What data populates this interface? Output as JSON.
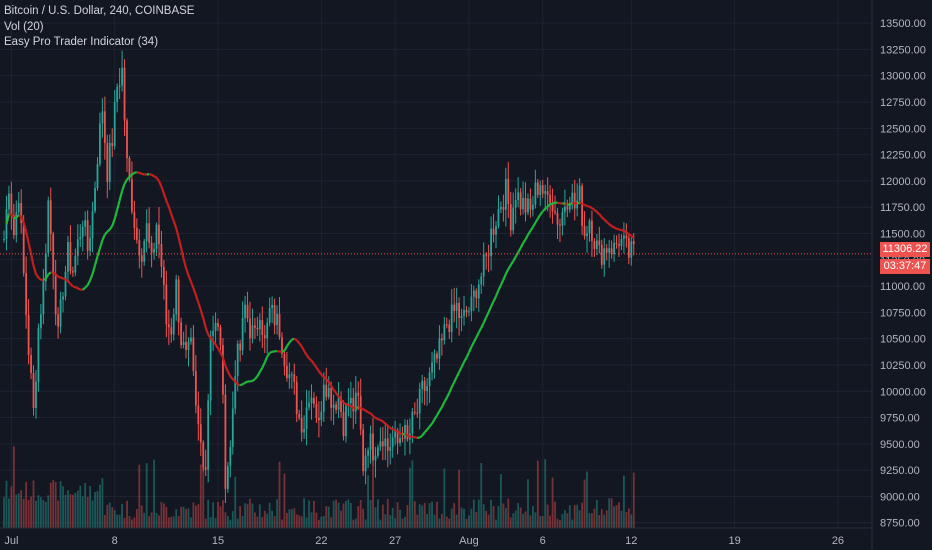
{
  "legend": {
    "symbol": "Bitcoin / U.S. Dollar, 240, COINBASE",
    "volume": "Vol (20)",
    "indicator": "Easy Pro Trader Indicator (34)"
  },
  "price_tag": {
    "value": "11306.22",
    "countdown": "03:37:47"
  },
  "colors": {
    "up": "#26a69a",
    "down": "#ef5350",
    "ma_up": "#1fb83a",
    "ma_down": "#c41f1f"
  },
  "chart_data": {
    "type": "candlestick",
    "x_axis_labels": [
      {
        "label": "Jul",
        "t": 3
      },
      {
        "label": "8",
        "t": 45
      },
      {
        "label": "15",
        "t": 87
      },
      {
        "label": "22",
        "t": 129
      },
      {
        "label": "27",
        "t": 159
      },
      {
        "label": "Aug",
        "t": 189
      },
      {
        "label": "6",
        "t": 219
      },
      {
        "label": "12",
        "t": 255
      },
      {
        "label": "19",
        "t": 297
      },
      {
        "label": "26",
        "t": 339
      }
    ],
    "y_ticks": [
      13500,
      13250,
      13000,
      12750,
      12500,
      12250,
      12000,
      11750,
      11500,
      11250,
      11000,
      10750,
      10500,
      10250,
      10000,
      9750,
      9500,
      9250,
      9000,
      8750
    ],
    "y_range": [
      8700,
      13720
    ],
    "last_price": 11306.22,
    "anchors": [
      [
        0,
        11450
      ],
      [
        2,
        11980
      ],
      [
        4,
        11500
      ],
      [
        6,
        11900
      ],
      [
        8,
        11100
      ],
      [
        10,
        10400
      ],
      [
        12,
        9800
      ],
      [
        14,
        10600
      ],
      [
        16,
        11000
      ],
      [
        18,
        11800
      ],
      [
        20,
        11200
      ],
      [
        22,
        10500
      ],
      [
        24,
        11000
      ],
      [
        26,
        11300
      ],
      [
        28,
        11150
      ],
      [
        30,
        11400
      ],
      [
        32,
        11650
      ],
      [
        34,
        11350
      ],
      [
        36,
        11700
      ],
      [
        38,
        12250
      ],
      [
        40,
        12700
      ],
      [
        42,
        12100
      ],
      [
        44,
        12400
      ],
      [
        46,
        12900
      ],
      [
        48,
        13050
      ],
      [
        50,
        12150
      ],
      [
        52,
        11800
      ],
      [
        54,
        11450
      ],
      [
        56,
        11350
      ],
      [
        58,
        11550
      ],
      [
        60,
        11200
      ],
      [
        62,
        11600
      ],
      [
        64,
        11200
      ],
      [
        66,
        10650
      ],
      [
        68,
        10600
      ],
      [
        70,
        11000
      ],
      [
        72,
        10500
      ],
      [
        74,
        10300
      ],
      [
        76,
        10400
      ],
      [
        78,
        9800
      ],
      [
        80,
        9500
      ],
      [
        82,
        9300
      ],
      [
        84,
        10600
      ],
      [
        86,
        10600
      ],
      [
        88,
        10500
      ],
      [
        90,
        9200
      ],
      [
        92,
        9450
      ],
      [
        94,
        10250
      ],
      [
        96,
        10400
      ],
      [
        98,
        10800
      ],
      [
        100,
        10600
      ],
      [
        102,
        10500
      ],
      [
        104,
        10800
      ],
      [
        106,
        10450
      ],
      [
        108,
        10750
      ],
      [
        110,
        10700
      ],
      [
        112,
        10600
      ],
      [
        114,
        10350
      ],
      [
        116,
        10150
      ],
      [
        118,
        10000
      ],
      [
        120,
        9750
      ],
      [
        122,
        9700
      ],
      [
        124,
        10000
      ],
      [
        126,
        9950
      ],
      [
        128,
        9650
      ],
      [
        130,
        10150
      ],
      [
        132,
        10000
      ],
      [
        134,
        9900
      ],
      [
        136,
        9950
      ],
      [
        138,
        9700
      ],
      [
        140,
        9900
      ],
      [
        142,
        9850
      ],
      [
        144,
        9900
      ],
      [
        146,
        9300
      ],
      [
        148,
        9550
      ],
      [
        150,
        9450
      ],
      [
        152,
        9550
      ],
      [
        154,
        9600
      ],
      [
        156,
        9450
      ],
      [
        158,
        9550
      ],
      [
        160,
        9500
      ],
      [
        162,
        9650
      ],
      [
        164,
        9500
      ],
      [
        166,
        9700
      ],
      [
        168,
        9800
      ],
      [
        170,
        10000
      ],
      [
        172,
        10050
      ],
      [
        174,
        10200
      ],
      [
        176,
        10300
      ],
      [
        178,
        10450
      ],
      [
        180,
        10650
      ],
      [
        182,
        10700
      ],
      [
        184,
        10800
      ],
      [
        186,
        10650
      ],
      [
        188,
        10750
      ],
      [
        190,
        10800
      ],
      [
        192,
        11000
      ],
      [
        194,
        11100
      ],
      [
        196,
        11250
      ],
      [
        198,
        11500
      ],
      [
        200,
        11650
      ],
      [
        202,
        11800
      ],
      [
        204,
        11900
      ],
      [
        206,
        11650
      ],
      [
        208,
        11900
      ],
      [
        210,
        11800
      ],
      [
        212,
        11750
      ],
      [
        214,
        11700
      ],
      [
        216,
        11900
      ],
      [
        218,
        12000
      ],
      [
        220,
        11800
      ],
      [
        222,
        11900
      ],
      [
        224,
        11700
      ],
      [
        226,
        11600
      ],
      [
        228,
        11800
      ],
      [
        230,
        11900
      ],
      [
        232,
        11750
      ],
      [
        234,
        11850
      ],
      [
        236,
        11500
      ],
      [
        238,
        11650
      ],
      [
        240,
        11450
      ],
      [
        242,
        11300
      ],
      [
        244,
        11350
      ],
      [
        246,
        11400
      ],
      [
        248,
        11350
      ],
      [
        250,
        11450
      ],
      [
        252,
        11380
      ],
      [
        254,
        11300
      ],
      [
        256,
        11320
      ]
    ]
  }
}
